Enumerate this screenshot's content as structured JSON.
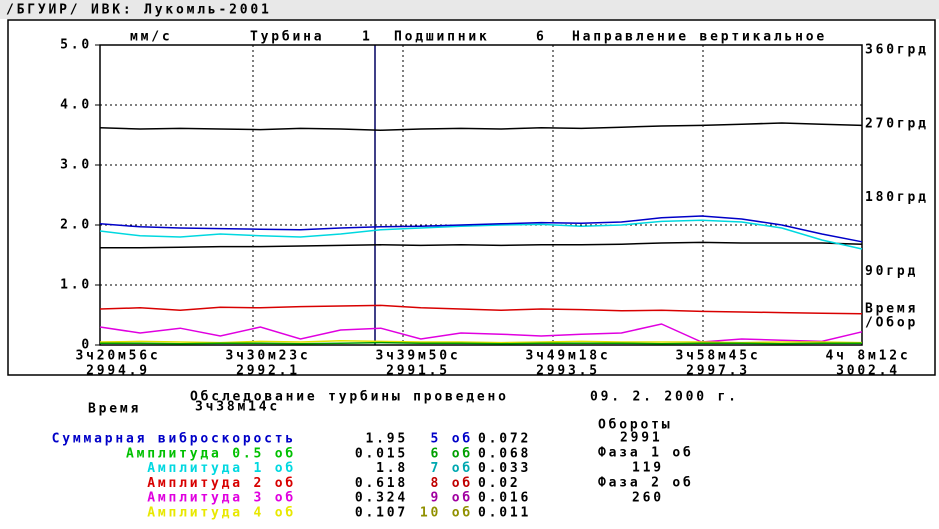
{
  "title": "/БГУИР/ ИВК: Лукомль-2001",
  "chart": {
    "header": {
      "unit": "мм/с",
      "turbine_label": "Турбина",
      "turbine": "1",
      "bearing_label": "Подшипник",
      "bearing": "6",
      "direction": "Направление вертикальное"
    },
    "ylim": [
      0,
      5
    ],
    "yticks": [
      {
        "value": 0,
        "label": "0"
      },
      {
        "value": 1,
        "label": "1.0"
      },
      {
        "value": 2,
        "label": "2.0"
      },
      {
        "value": 3,
        "label": "3.0"
      },
      {
        "value": 4,
        "label": "4.0"
      },
      {
        "value": 5,
        "label": "5.0"
      }
    ],
    "y2lim": [
      0,
      360
    ],
    "y2ticks": [
      {
        "value": 90,
        "label": "90грд"
      },
      {
        "value": 180,
        "label": "180грд"
      },
      {
        "value": 270,
        "label": "270грд"
      },
      {
        "value": 360,
        "label": "360грд"
      }
    ],
    "y2_extra": [
      "Время",
      "/Обор"
    ],
    "xticks": [
      {
        "time": "3ч20м56с",
        "revs": "2994.9"
      },
      {
        "time": "3ч30м23с",
        "revs": "2992.1"
      },
      {
        "time": "3ч39м50с",
        "revs": "2991.5"
      },
      {
        "time": "3ч49м18с",
        "revs": "2993.5"
      },
      {
        "time": "3ч58м45с",
        "revs": "2997.3"
      },
      {
        "time": "4ч 8м12с",
        "revs": "3002.4"
      }
    ],
    "series": [
      {
        "color": "#000000",
        "values": [
          3.62,
          3.6,
          3.61,
          3.6,
          3.59,
          3.61,
          3.6,
          3.58,
          3.6,
          3.61,
          3.6,
          3.62,
          3.61,
          3.63,
          3.65,
          3.66,
          3.68,
          3.7,
          3.68,
          3.66
        ]
      },
      {
        "color": "#000000",
        "values": [
          1.62,
          1.62,
          1.63,
          1.64,
          1.64,
          1.65,
          1.66,
          1.67,
          1.66,
          1.67,
          1.66,
          1.67,
          1.67,
          1.68,
          1.7,
          1.71,
          1.7,
          1.7,
          1.7,
          1.68
        ]
      },
      {
        "color": "#00d8e0",
        "values": [
          1.9,
          1.82,
          1.8,
          1.85,
          1.82,
          1.8,
          1.85,
          1.92,
          1.95,
          1.98,
          2.0,
          2.01,
          1.98,
          2.0,
          2.06,
          2.08,
          2.05,
          1.95,
          1.75,
          1.6
        ]
      },
      {
        "color": "#0000c8",
        "values": [
          2.02,
          1.97,
          1.95,
          1.94,
          1.93,
          1.92,
          1.95,
          1.97,
          1.98,
          2.0,
          2.02,
          2.04,
          2.03,
          2.05,
          2.12,
          2.15,
          2.1,
          2.0,
          1.85,
          1.72
        ]
      },
      {
        "color": "#d80000",
        "values": [
          0.6,
          0.62,
          0.58,
          0.63,
          0.62,
          0.64,
          0.65,
          0.66,
          0.62,
          0.6,
          0.58,
          0.6,
          0.59,
          0.57,
          0.58,
          0.56,
          0.55,
          0.54,
          0.53,
          0.52
        ]
      },
      {
        "color": "#e000e0",
        "values": [
          0.3,
          0.2,
          0.28,
          0.15,
          0.3,
          0.1,
          0.25,
          0.28,
          0.1,
          0.2,
          0.18,
          0.15,
          0.18,
          0.2,
          0.35,
          0.05,
          0.1,
          0.08,
          0.06,
          0.22
        ]
      },
      {
        "color": "#e0e000",
        "values": [
          0.05,
          0.06,
          0.05,
          0.04,
          0.06,
          0.05,
          0.07,
          0.06,
          0.05,
          0.05,
          0.04,
          0.05,
          0.06,
          0.05,
          0.05,
          0.05,
          0.04,
          0.05,
          0.05,
          0.04
        ]
      },
      {
        "color": "#00a000",
        "values": [
          0.03,
          0.03,
          0.02,
          0.03,
          0.03,
          0.02,
          0.03,
          0.04,
          0.03,
          0.03,
          0.02,
          0.03,
          0.03,
          0.03,
          0.02,
          0.03,
          0.03,
          0.02,
          0.03,
          0.03
        ]
      }
    ]
  },
  "info": {
    "survey": "Обследование турбины проведено",
    "date": "09. 2. 2000 г.",
    "time_label": "Время",
    "time": "3ч38м14с",
    "rows": [
      {
        "name": "Суммарная виброскорость",
        "color": "#0000c8",
        "value": "1.95",
        "harmonic": "5 об",
        "harmonic_color": "#0000c8",
        "harmonic_value": "0.072"
      },
      {
        "name": "Амплитуда 0.5 об",
        "color": "#00c000",
        "value": "0.015",
        "harmonic": "6 об",
        "harmonic_color": "#00a000",
        "harmonic_value": "0.068"
      },
      {
        "name": "Амплитуда 1 об",
        "color": "#00d8e0",
        "value": "1.8",
        "harmonic": "7 об",
        "harmonic_color": "#00a8b0",
        "harmonic_value": "0.033"
      },
      {
        "name": "Амплитуда 2 об",
        "color": "#d80000",
        "value": "0.618",
        "harmonic": "8 об",
        "harmonic_color": "#c00000",
        "harmonic_value": "0.02"
      },
      {
        "name": "Амплитуда 3 об",
        "color": "#e000e0",
        "value": "0.324",
        "harmonic": "9 об",
        "harmonic_color": "#a000a0",
        "harmonic_value": "0.016"
      },
      {
        "name": "Амплитуда 4 об",
        "color": "#e8e800",
        "value": "0.107",
        "harmonic": "10 об",
        "harmonic_color": "#909000",
        "harmonic_value": "0.011"
      }
    ],
    "revs_label": "Обороты",
    "revs": "2991",
    "phase1_label": "Фаза 1 об",
    "phase1": "119",
    "phase2_label": "Фаза 2 об",
    "phase2": "260"
  }
}
